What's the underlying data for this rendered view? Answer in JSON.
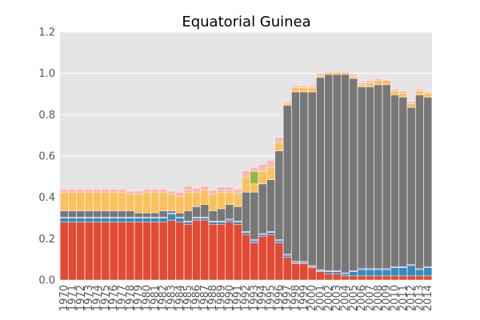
{
  "chart_data": {
    "type": "bar",
    "stacked": true,
    "title": "Equatorial Guinea",
    "xlabel": "",
    "ylabel": "",
    "ylim": [
      0,
      1.2
    ],
    "yticks": [
      "0.0",
      "0.2",
      "0.4",
      "0.6",
      "0.8",
      "1.0",
      "1.2"
    ],
    "grid": true,
    "background": "#e5e5e5",
    "categories": [
      "1970",
      "1971",
      "1972",
      "1973",
      "1974",
      "1975",
      "1976",
      "1977",
      "1978",
      "1979",
      "1980",
      "1981",
      "1982",
      "1983",
      "1984",
      "1985",
      "1986",
      "1987",
      "1988",
      "1989",
      "1990",
      "1991",
      "1992",
      "1993",
      "1994",
      "1995",
      "1996",
      "1997",
      "1998",
      "1999",
      "2000",
      "2001",
      "2002",
      "2003",
      "2004",
      "2005",
      "2006",
      "2007",
      "2008",
      "2009",
      "2010",
      "2011",
      "2012",
      "2013",
      "2014"
    ],
    "series": [
      {
        "color": "#e24a33",
        "values": [
          0.28,
          0.28,
          0.28,
          0.28,
          0.28,
          0.28,
          0.28,
          0.28,
          0.28,
          0.28,
          0.28,
          0.28,
          0.28,
          0.29,
          0.28,
          0.27,
          0.29,
          0.29,
          0.27,
          0.27,
          0.28,
          0.27,
          0.22,
          0.18,
          0.21,
          0.22,
          0.18,
          0.11,
          0.08,
          0.08,
          0.06,
          0.04,
          0.03,
          0.03,
          0.02,
          0.02,
          0.02,
          0.02,
          0.02,
          0.02,
          0.02,
          0.02,
          0.02,
          0.02,
          0.02
        ]
      },
      {
        "color": "#348abd",
        "values": [
          0.02,
          0.02,
          0.02,
          0.02,
          0.02,
          0.02,
          0.02,
          0.02,
          0.02,
          0.02,
          0.02,
          0.02,
          0.02,
          0.03,
          0.02,
          0.01,
          0.01,
          0.01,
          0.01,
          0.01,
          0.01,
          0.01,
          0.01,
          0.01,
          0.01,
          0.01,
          0.01,
          0.01,
          0.005,
          0.005,
          0.005,
          0.005,
          0.01,
          0.01,
          0.01,
          0.02,
          0.03,
          0.03,
          0.03,
          0.03,
          0.04,
          0.04,
          0.05,
          0.03,
          0.04
        ]
      },
      {
        "color": "#988ed5",
        "values": [
          0.005,
          0.005,
          0.005,
          0.005,
          0.005,
          0.005,
          0.005,
          0.005,
          0.005,
          0.005,
          0.005,
          0.005,
          0.005,
          0.005,
          0.005,
          0.005,
          0.005,
          0.005,
          0.005,
          0.005,
          0.005,
          0.005,
          0.005,
          0.005,
          0.005,
          0.005,
          0.005,
          0.005,
          0.005,
          0.005,
          0.005,
          0.005,
          0.005,
          0.005,
          0.005,
          0.005,
          0.005,
          0.005,
          0.005,
          0.005,
          0.005,
          0.005,
          0.005,
          0.005,
          0.005
        ]
      },
      {
        "color": "#777777",
        "values": [
          0.03,
          0.03,
          0.03,
          0.03,
          0.03,
          0.03,
          0.03,
          0.03,
          0.03,
          0.02,
          0.02,
          0.02,
          0.03,
          0.01,
          0.02,
          0.05,
          0.05,
          0.06,
          0.05,
          0.06,
          0.07,
          0.07,
          0.19,
          0.23,
          0.24,
          0.25,
          0.43,
          0.72,
          0.82,
          0.82,
          0.84,
          0.93,
          0.95,
          0.95,
          0.96,
          0.93,
          0.88,
          0.88,
          0.89,
          0.89,
          0.83,
          0.82,
          0.76,
          0.84,
          0.82
        ]
      },
      {
        "color": "#fbc15e",
        "values": [
          0.09,
          0.09,
          0.09,
          0.09,
          0.09,
          0.09,
          0.09,
          0.09,
          0.08,
          0.09,
          0.1,
          0.1,
          0.09,
          0.08,
          0.08,
          0.09,
          0.07,
          0.07,
          0.08,
          0.08,
          0.06,
          0.06,
          0.07,
          0.04,
          0.06,
          0.06,
          0.04,
          0.01,
          0.02,
          0.02,
          0.02,
          0.01,
          0.01,
          0.01,
          0.01,
          0.01,
          0.01,
          0.02,
          0.02,
          0.02,
          0.02,
          0.02,
          0.02,
          0.02,
          0.02
        ]
      },
      {
        "color": "#8eba42",
        "values": [
          0.0,
          0.0,
          0.0,
          0.0,
          0.0,
          0.0,
          0.0,
          0.0,
          0.0,
          0.0,
          0.0,
          0.0,
          0.0,
          0.0,
          0.0,
          0.005,
          0.0,
          0.0,
          0.0,
          0.005,
          0.005,
          0.005,
          0.005,
          0.06,
          0.005,
          0.005,
          0.005,
          0.0,
          0.0,
          0.0,
          0.0,
          0.0,
          0.0,
          0.0,
          0.0,
          0.0,
          0.0,
          0.0,
          0.0,
          0.0,
          0.0,
          0.0,
          0.0,
          0.0,
          0.0
        ]
      },
      {
        "color": "#ffb5b8",
        "values": [
          0.015,
          0.015,
          0.015,
          0.015,
          0.015,
          0.015,
          0.015,
          0.015,
          0.015,
          0.015,
          0.015,
          0.015,
          0.015,
          0.015,
          0.02,
          0.025,
          0.02,
          0.02,
          0.02,
          0.02,
          0.02,
          0.02,
          0.03,
          0.02,
          0.03,
          0.03,
          0.02,
          0.01,
          0.01,
          0.01,
          0.01,
          0.01,
          0.005,
          0.005,
          0.005,
          0.01,
          0.01,
          0.01,
          0.01,
          0.005,
          0.01,
          0.01,
          0.01,
          0.01,
          0.005
        ]
      }
    ]
  }
}
